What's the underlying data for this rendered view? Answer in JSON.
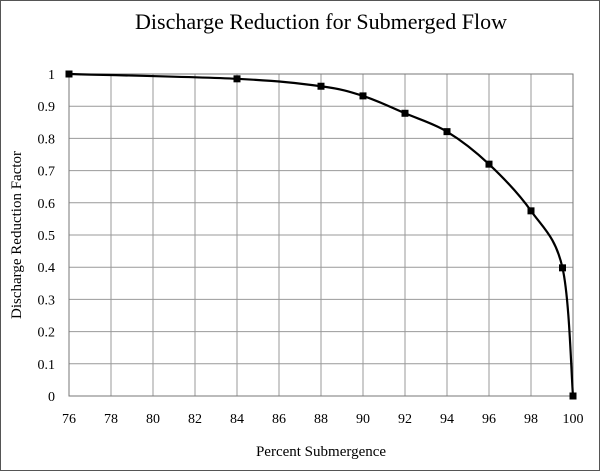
{
  "chart_data": {
    "type": "line",
    "title": "Discharge Reduction for Submerged Flow",
    "xlabel": "Percent Submergence",
    "ylabel": "Discharge Reduction Factor",
    "xlim": [
      76,
      100
    ],
    "ylim": [
      0,
      1
    ],
    "grid": true,
    "xticks": [
      "76",
      "78",
      "80",
      "82",
      "84",
      "86",
      "88",
      "90",
      "92",
      "94",
      "96",
      "98",
      "100"
    ],
    "yticks": [
      "0",
      "0.1",
      "0.2",
      "0.3",
      "0.4",
      "0.5",
      "0.6",
      "0.7",
      "0.8",
      "0.9",
      "1"
    ],
    "series": [
      {
        "name": "Discharge Reduction Factor",
        "x": [
          76,
          84,
          88,
          90,
          92,
          94,
          96,
          98,
          99.5,
          100
        ],
        "y": [
          1.0,
          0.985,
          0.962,
          0.932,
          0.878,
          0.821,
          0.72,
          0.575,
          0.398,
          0.0
        ],
        "color": "#000000",
        "marker": "square"
      }
    ]
  }
}
